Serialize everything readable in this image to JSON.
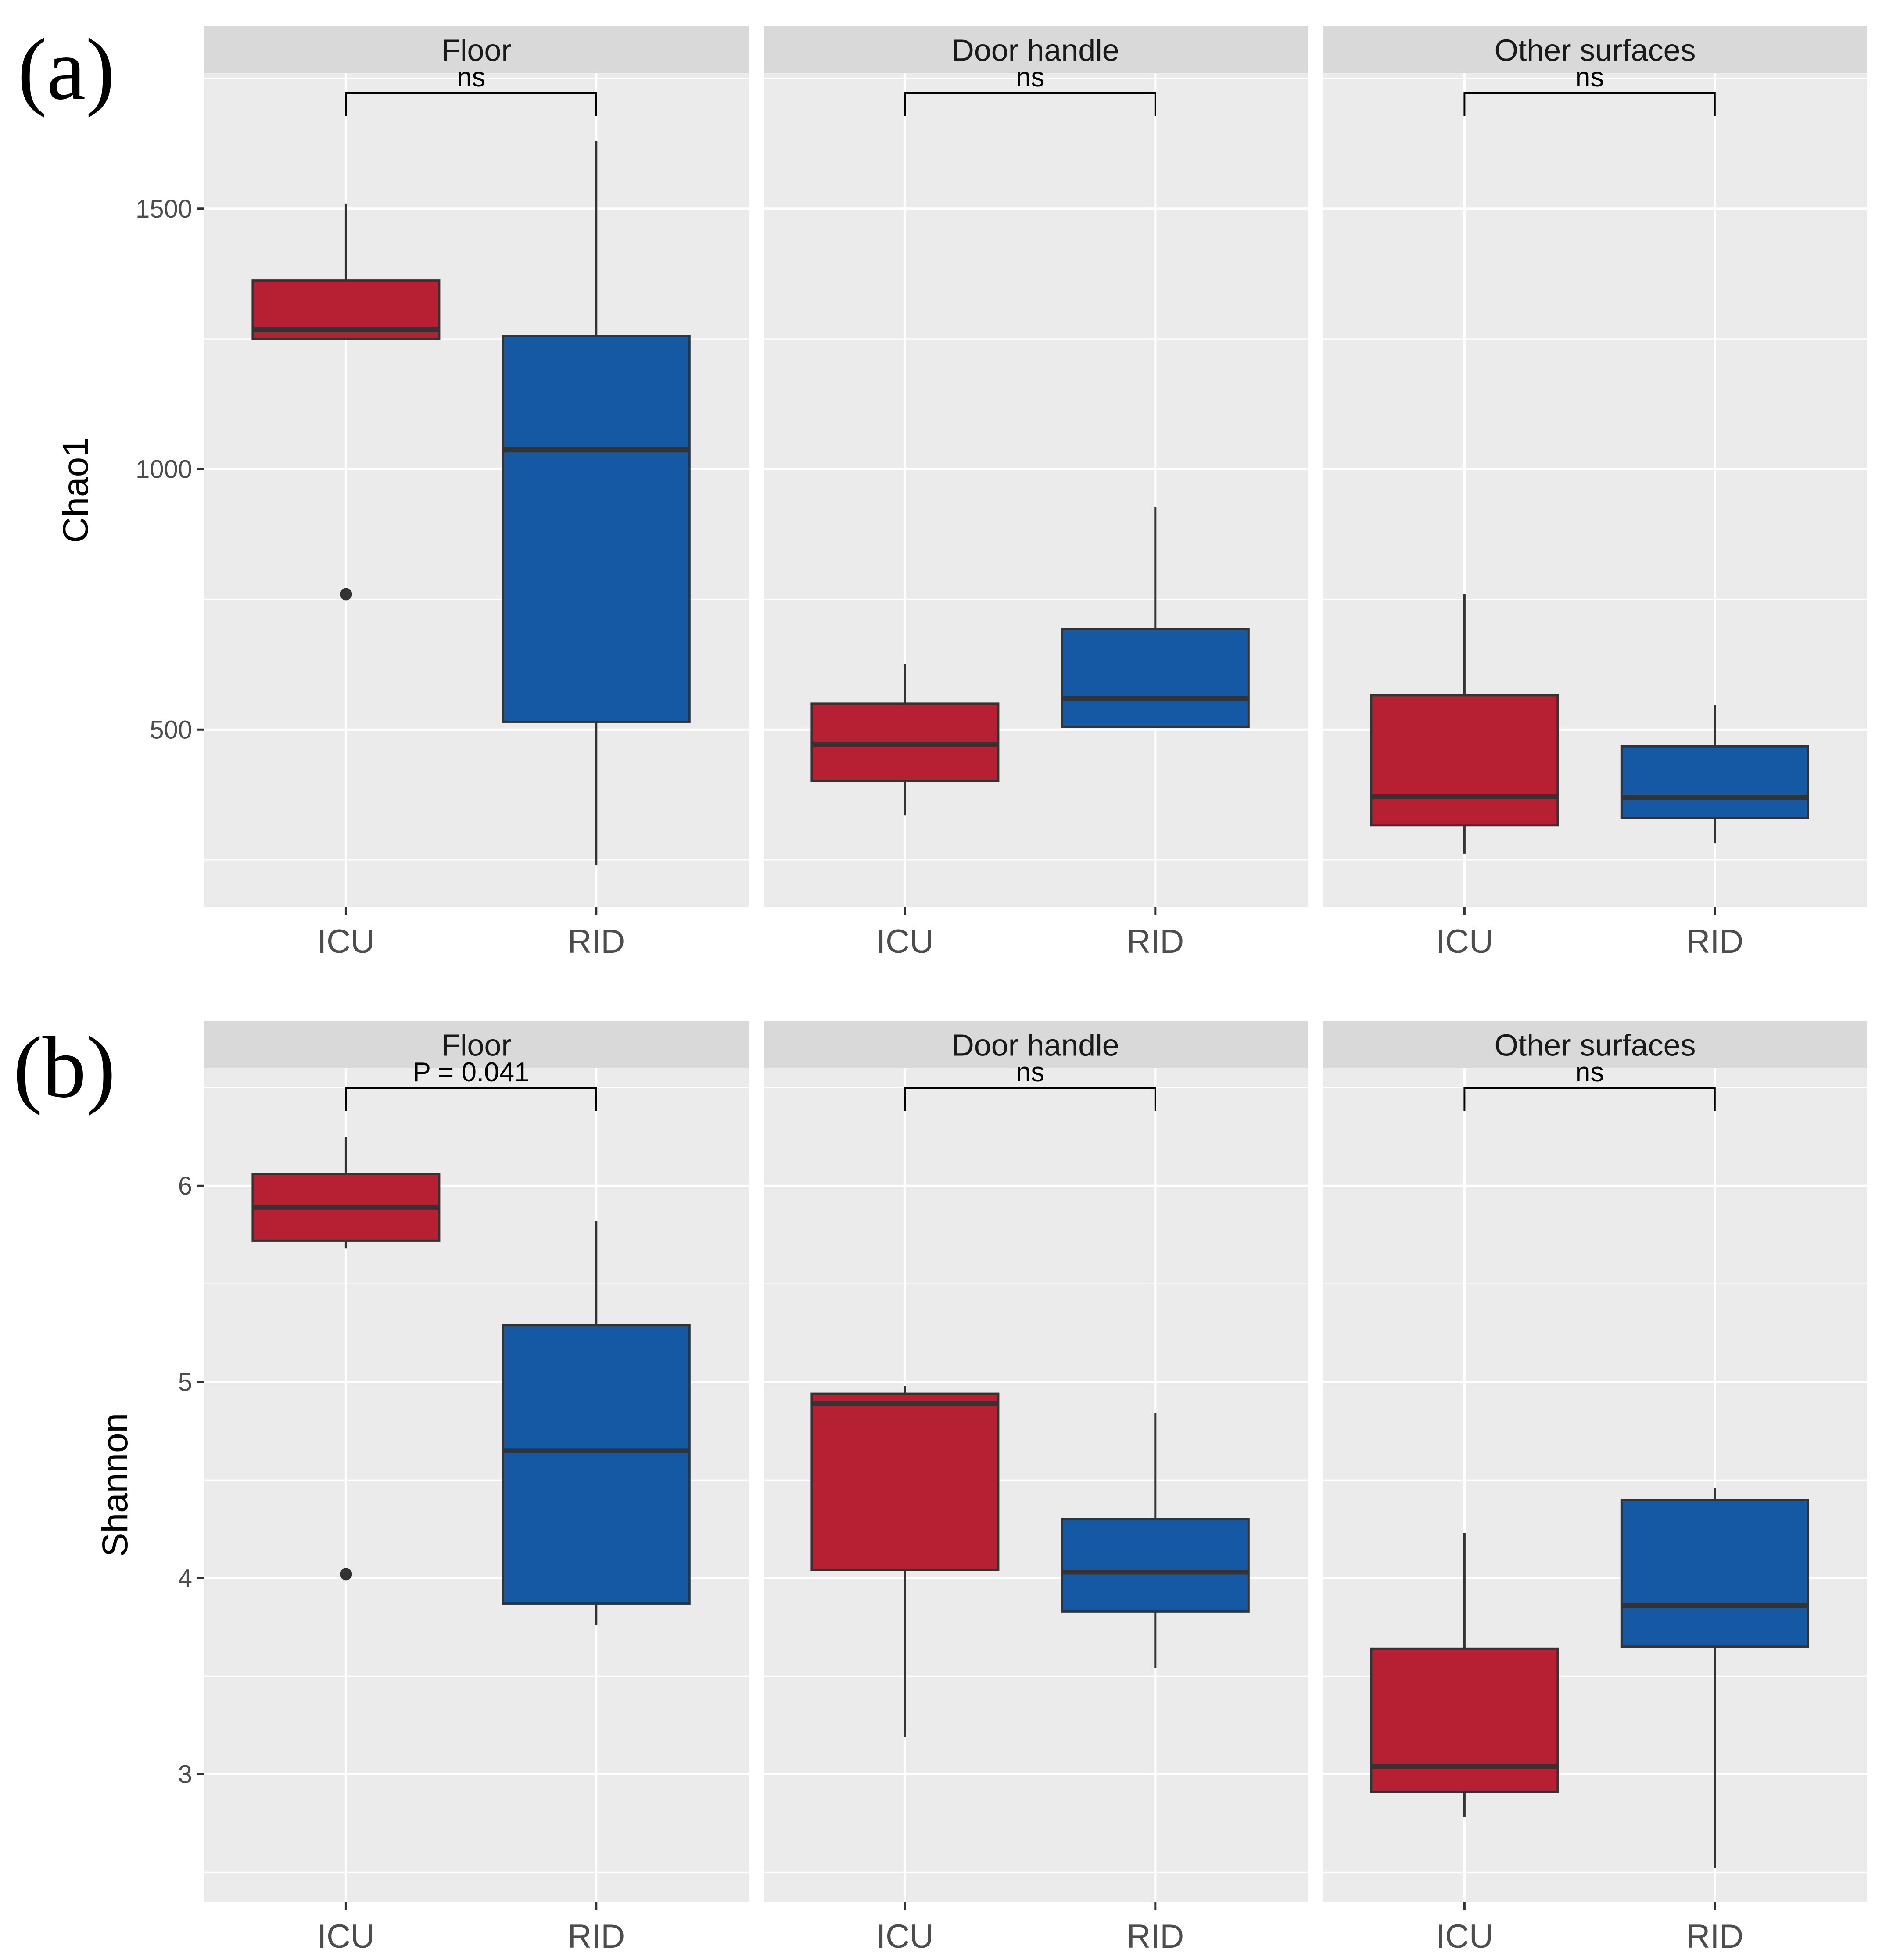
{
  "figure": {
    "colors": {
      "ICU": "#b71f33",
      "RID": "#1558a4",
      "panel_bg": "#ebebeb",
      "strip_bg": "#d9d9d9",
      "grid": "#ffffff",
      "box_line": "#333333"
    },
    "panel_labels": [
      "(a)",
      "(b)"
    ]
  },
  "chart_data": [
    {
      "type": "boxplot",
      "panel_label": "(a)",
      "ylabel": "Chao1",
      "xlabel": "",
      "ylim": [
        160,
        1760
      ],
      "yticks": [
        500,
        1000,
        1500
      ],
      "y_minor": [
        250,
        750,
        1250,
        1750
      ],
      "categories": [
        "ICU",
        "RID"
      ],
      "facets": [
        {
          "title": "Floor",
          "comparison": "ns",
          "groups": [
            {
              "name": "ICU",
              "whisker_low": 1250,
              "q1": 1250,
              "median": 1268,
              "q3": 1362,
              "whisker_high": 1510,
              "outliers": [
                760
              ]
            },
            {
              "name": "RID",
              "whisker_low": 240,
              "q1": 515,
              "median": 1037,
              "q3": 1256,
              "whisker_high": 1630,
              "outliers": []
            }
          ]
        },
        {
          "title": "Door handle",
          "comparison": "ns",
          "groups": [
            {
              "name": "ICU",
              "whisker_low": 335,
              "q1": 402,
              "median": 472,
              "q3": 550,
              "whisker_high": 626,
              "outliers": []
            },
            {
              "name": "RID",
              "whisker_low": 505,
              "q1": 505,
              "median": 560,
              "q3": 693,
              "whisker_high": 928,
              "outliers": []
            }
          ]
        },
        {
          "title": "Other surfaces",
          "comparison": "ns",
          "groups": [
            {
              "name": "ICU",
              "whisker_low": 262,
              "q1": 316,
              "median": 371,
              "q3": 566,
              "whisker_high": 760,
              "outliers": []
            },
            {
              "name": "RID",
              "whisker_low": 282,
              "q1": 330,
              "median": 370,
              "q3": 468,
              "whisker_high": 548,
              "outliers": []
            }
          ]
        }
      ]
    },
    {
      "type": "boxplot",
      "panel_label": "(b)",
      "ylabel": "Shannon",
      "xlabel": "",
      "ylim": [
        2.35,
        6.6
      ],
      "yticks": [
        3,
        4,
        5,
        6
      ],
      "y_minor": [
        2.5,
        3.5,
        4.5,
        5.5,
        6.5
      ],
      "categories": [
        "ICU",
        "RID"
      ],
      "facets": [
        {
          "title": "Floor",
          "comparison": "P = 0.041",
          "groups": [
            {
              "name": "ICU",
              "whisker_low": 5.68,
              "q1": 5.72,
              "median": 5.89,
              "q3": 6.06,
              "whisker_high": 6.25,
              "outliers": [
                4.02
              ]
            },
            {
              "name": "RID",
              "whisker_low": 3.76,
              "q1": 3.87,
              "median": 4.65,
              "q3": 5.29,
              "whisker_high": 5.82,
              "outliers": []
            }
          ]
        },
        {
          "title": "Door handle",
          "comparison": "ns",
          "groups": [
            {
              "name": "ICU",
              "whisker_low": 3.19,
              "q1": 4.04,
              "median": 4.89,
              "q3": 4.94,
              "whisker_high": 4.98,
              "outliers": []
            },
            {
              "name": "RID",
              "whisker_low": 3.54,
              "q1": 3.83,
              "median": 4.03,
              "q3": 4.3,
              "whisker_high": 4.84,
              "outliers": []
            }
          ]
        },
        {
          "title": "Other surfaces",
          "comparison": "ns",
          "groups": [
            {
              "name": "ICU",
              "whisker_low": 2.78,
              "q1": 2.91,
              "median": 3.04,
              "q3": 3.64,
              "whisker_high": 4.23,
              "outliers": []
            },
            {
              "name": "RID",
              "whisker_low": 2.52,
              "q1": 3.65,
              "median": 3.86,
              "q3": 4.4,
              "whisker_high": 4.46,
              "outliers": []
            }
          ]
        }
      ]
    }
  ]
}
